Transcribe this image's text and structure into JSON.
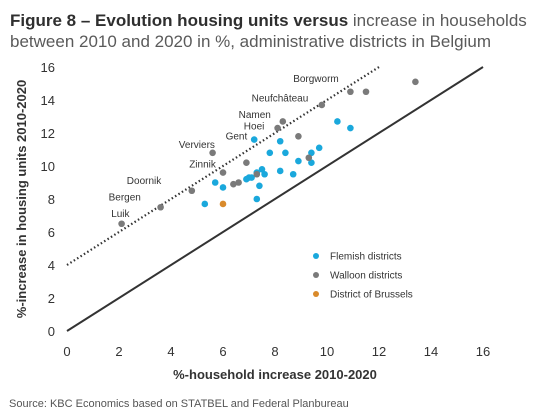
{
  "title": {
    "bold": "Figure 8 – Evolution housing units versus",
    "rest": " increase in households between 2010 and 2020 in  %, administrative districts in Belgium"
  },
  "source": "Source: KBC Economics based on STATBEL and Federal Planbureau",
  "colors": {
    "flemish": "#1aa8dc",
    "walloon": "#7a7a7a",
    "brussels": "#d98a2b",
    "line": "#333333"
  },
  "chart_data": {
    "type": "scatter",
    "xlabel": "%-household increase 2010-2020",
    "ylabel": "%-increase in housing units 2010-2020",
    "xlim": [
      0,
      16
    ],
    "ylim": [
      0,
      16
    ],
    "xticks": [
      0,
      2,
      4,
      6,
      8,
      10,
      12,
      14,
      16
    ],
    "yticks": [
      0,
      2,
      4,
      6,
      8,
      10,
      12,
      14,
      16
    ],
    "grid": false,
    "legend_position": "right",
    "lines": [
      {
        "style": "solid",
        "points": [
          [
            0,
            0
          ],
          [
            16,
            16
          ]
        ]
      },
      {
        "style": "dotted",
        "points": [
          [
            0,
            4
          ],
          [
            12,
            16
          ]
        ]
      }
    ],
    "series": [
      {
        "name": "Flemish districts",
        "points": [
          [
            5.3,
            7.7
          ],
          [
            5.7,
            9.0
          ],
          [
            6.0,
            8.7
          ],
          [
            6.9,
            9.2
          ],
          [
            7.0,
            9.3
          ],
          [
            7.1,
            9.3
          ],
          [
            7.3,
            9.6
          ],
          [
            7.3,
            8.0
          ],
          [
            7.4,
            8.8
          ],
          [
            7.5,
            9.8
          ],
          [
            7.6,
            9.5
          ],
          [
            7.2,
            11.6
          ],
          [
            7.8,
            10.8
          ],
          [
            8.2,
            11.5
          ],
          [
            8.2,
            9.7
          ],
          [
            8.4,
            10.8
          ],
          [
            8.7,
            9.5
          ],
          [
            8.9,
            10.3
          ],
          [
            9.4,
            10.2
          ],
          [
            9.4,
            10.8
          ],
          [
            9.7,
            11.1
          ],
          [
            10.4,
            12.7
          ],
          [
            10.9,
            12.3
          ]
        ]
      },
      {
        "name": "Walloon districts",
        "points": [
          [
            2.1,
            6.5
          ],
          [
            3.6,
            7.5
          ],
          [
            4.8,
            8.5
          ],
          [
            5.6,
            10.8
          ],
          [
            6.0,
            9.6
          ],
          [
            6.4,
            8.9
          ],
          [
            6.6,
            9.0
          ],
          [
            6.9,
            10.2
          ],
          [
            7.3,
            9.5
          ],
          [
            8.1,
            12.3
          ],
          [
            8.3,
            12.7
          ],
          [
            8.9,
            11.8
          ],
          [
            9.3,
            10.5
          ],
          [
            9.8,
            13.7
          ],
          [
            10.9,
            14.5
          ],
          [
            11.5,
            14.5
          ],
          [
            13.4,
            15.1
          ]
        ]
      },
      {
        "name": "District of Brussels",
        "points": [
          [
            6.0,
            7.7
          ]
        ]
      }
    ],
    "annotations": [
      {
        "text": "Luik",
        "x": 1.7,
        "y": 6.9
      },
      {
        "text": "Bergen",
        "x": 1.6,
        "y": 7.9
      },
      {
        "text": "Doornik",
        "x": 2.3,
        "y": 8.9
      },
      {
        "text": "Zinnik",
        "x": 4.7,
        "y": 9.9
      },
      {
        "text": "Verviers",
        "x": 4.3,
        "y": 11.1
      },
      {
        "text": "Gent",
        "x": 6.1,
        "y": 11.6
      },
      {
        "text": "Hoei",
        "x": 6.8,
        "y": 12.2
      },
      {
        "text": "Namen",
        "x": 6.6,
        "y": 12.9
      },
      {
        "text": "Neufchâteau",
        "x": 7.1,
        "y": 13.9
      },
      {
        "text": "Borgworm",
        "x": 8.7,
        "y": 15.1
      }
    ]
  }
}
